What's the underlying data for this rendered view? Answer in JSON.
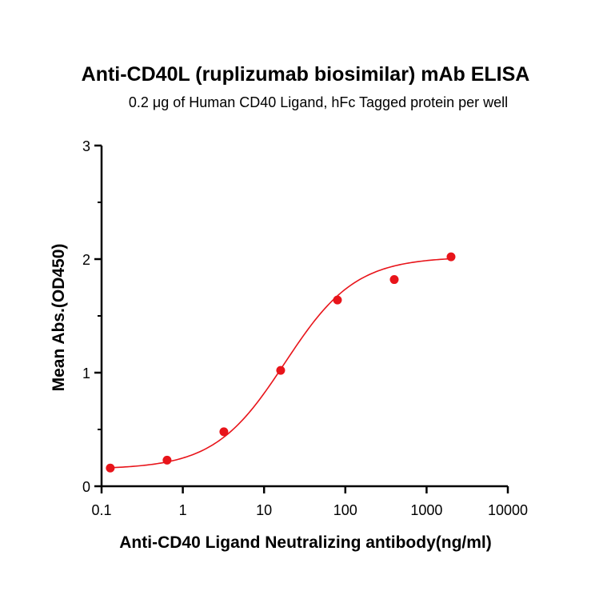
{
  "chart_data": {
    "type": "scatter",
    "title": "Anti-CD40L (ruplizumab biosimilar) mAb ELISA",
    "subtitle": "0.2 μg of Human CD40 Ligand, hFc Tagged protein per well",
    "xlabel": "Anti-CD40 Ligand Neutralizing antibody(ng/ml)",
    "ylabel": "Mean Abs.(OD450)",
    "xscale": "log",
    "xlim": [
      0.1,
      10000
    ],
    "ylim": [
      0,
      3
    ],
    "x_ticks": [
      "0.1",
      "1",
      "10",
      "100",
      "1000",
      "10000"
    ],
    "y_ticks": [
      "0",
      "1",
      "2",
      "3"
    ],
    "grid": false,
    "color": "#e8141a",
    "series": [
      {
        "x": [
          0.128,
          0.64,
          3.2,
          16,
          80,
          400,
          2000
        ],
        "y": [
          0.16,
          0.23,
          0.48,
          1.02,
          1.64,
          1.82,
          2.02
        ]
      }
    ],
    "fit": {
      "type": "4PL",
      "bottom": 0.15,
      "top": 2.02,
      "ec50": 18,
      "hill": 1.0
    }
  }
}
